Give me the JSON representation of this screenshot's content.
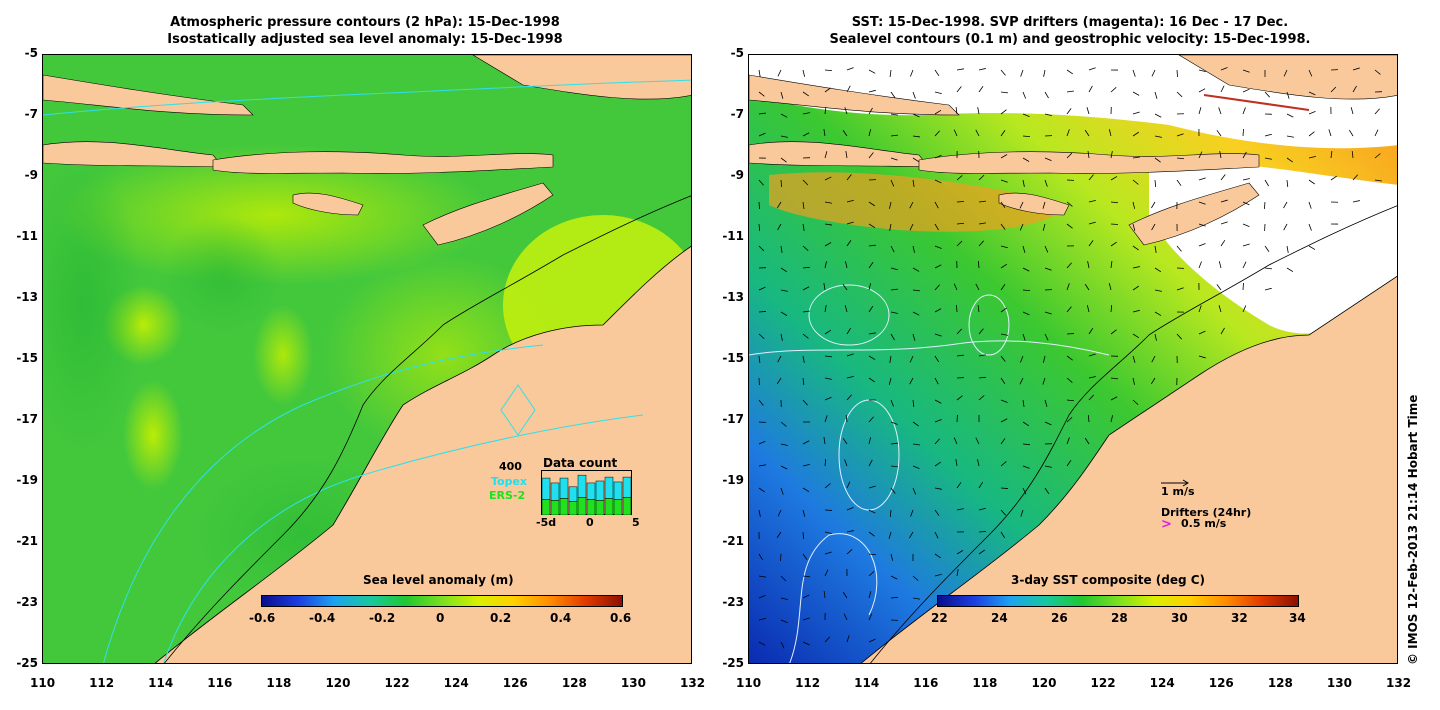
{
  "left_panel": {
    "title_line1": "Atmospheric pressure contours (2 hPa): 15-Dec-1998",
    "title_line2": "Isostatically adjusted sea level anomaly: 15-Dec-1998",
    "colorbar": {
      "title": "Sea level anomaly (m)",
      "ticks": [
        "-0.6",
        "-0.4",
        "-0.2",
        "0",
        "0.2",
        "0.4",
        "0.6"
      ],
      "range": [
        -0.6,
        0.6
      ]
    },
    "data_count": {
      "title": "Data count",
      "scale_label": "400",
      "topex_label": "Topex",
      "ers_label": "ERS-2",
      "x_ticks": [
        "-5d",
        "0",
        "5"
      ],
      "topex_counts": [
        220,
        180,
        210,
        150,
        230,
        170,
        200,
        220,
        180,
        210
      ],
      "ers_counts": [
        160,
        150,
        170,
        140,
        180,
        160,
        150,
        170,
        160,
        180
      ]
    }
  },
  "right_panel": {
    "title_line1": "SST: 15-Dec-1998. SVP drifters (magenta): 16 Dec - 17 Dec.",
    "title_line2": "Sealevel contours (0.1 m) and geostrophic velocity: 15-Dec-1998.",
    "colorbar": {
      "title": "3-day SST composite (deg C)",
      "ticks": [
        "22",
        "24",
        "26",
        "28",
        "30",
        "32",
        "34"
      ],
      "range": [
        22,
        34
      ]
    },
    "velocity_scale": "1 m/s",
    "drifters_title": "Drifters (24hr)",
    "drifters_scale": "0.5 m/s",
    "drifter_symbol": ">"
  },
  "axes": {
    "x_ticks": [
      "110",
      "112",
      "114",
      "116",
      "118",
      "120",
      "122",
      "124",
      "126",
      "128",
      "130",
      "132"
    ],
    "y_ticks": [
      "-5",
      "-7",
      "-9",
      "-11",
      "-13",
      "-15",
      "-17",
      "-19",
      "-21",
      "-23",
      "-25"
    ],
    "lon_range": [
      110,
      132
    ],
    "lat_range": [
      -25,
      -5
    ]
  },
  "credit": "© IMOS 12-Feb-2013 21:14 Hobart Time",
  "colors": {
    "land": "#f9c89b",
    "ocean_left": "#3fcf3f",
    "topex": "#20e0f0",
    "ers": "#20e020",
    "drifter": "#e020e0"
  }
}
